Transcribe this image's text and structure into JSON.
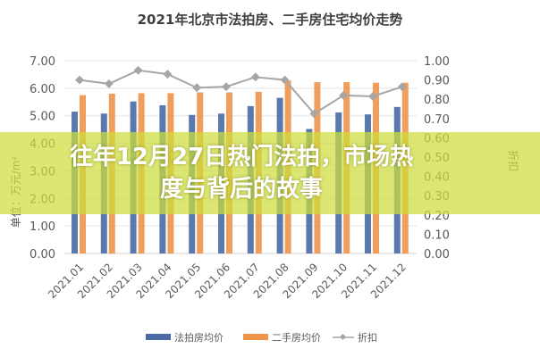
{
  "overlay": {
    "title": "往年12月27日热门法拍，市场热度与背后的故事",
    "color": "#cdde3c"
  },
  "chart_data": {
    "type": "bar",
    "title": "2021年北京市法拍房、二手房住宅均价走势",
    "ylabel": "单位：万元/m²",
    "y2label": "折扣",
    "ylim": [
      0,
      7
    ],
    "y2lim": [
      0,
      1
    ],
    "yticks": [
      "0.00",
      "1.00",
      "2.00",
      "3.00",
      "4.00",
      "5.00",
      "6.00",
      "7.00"
    ],
    "y2ticks": [
      "0.00",
      "0.10",
      "0.20",
      "0.30",
      "0.40",
      "0.50",
      "0.60",
      "0.70",
      "0.80",
      "0.90",
      "1.00"
    ],
    "grid": true,
    "legend": "bottom",
    "categories": [
      "2021.01",
      "2021.02",
      "2021.03",
      "2021.04",
      "2021.05",
      "2021.06",
      "2021.07",
      "2021.08",
      "2021.09",
      "2021.10",
      "2021.11",
      "2021.12"
    ],
    "series": [
      {
        "name": "法拍房均价",
        "type": "bar",
        "color": "#4a6aa5",
        "values": [
          5.15,
          5.08,
          5.52,
          5.38,
          5.03,
          5.08,
          5.35,
          5.65,
          4.52,
          5.12,
          5.05,
          5.32
        ]
      },
      {
        "name": "二手房均价",
        "type": "bar",
        "color": "#f0944a",
        "values": [
          5.75,
          5.8,
          5.82,
          5.82,
          5.85,
          5.85,
          5.87,
          6.28,
          6.22,
          6.22,
          6.2,
          6.2
        ]
      },
      {
        "name": "折扣",
        "type": "line",
        "axis": "right",
        "color": "#a6a6a6",
        "values": [
          0.9,
          0.88,
          0.95,
          0.93,
          0.86,
          0.865,
          0.915,
          0.9,
          0.725,
          0.82,
          0.815,
          0.865
        ]
      }
    ]
  }
}
